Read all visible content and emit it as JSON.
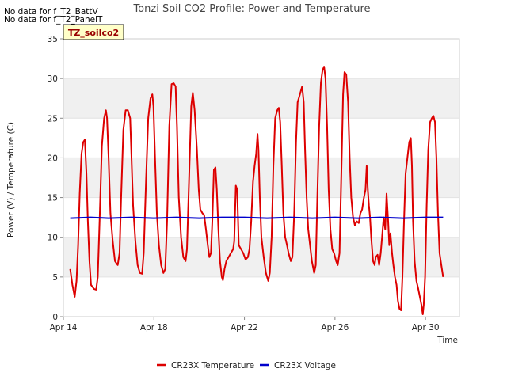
{
  "notes": [
    "No data for f_T2_BattV",
    "No data for f_T2_PanelT"
  ],
  "badge": "TZ_soilco2",
  "chart_data": {
    "type": "line",
    "title": "Tonzi Soil CO2 Profile: Power and Temperature",
    "xlabel": "Time",
    "ylabel": "Power (V) / Temperature (C)",
    "xlim": [
      0,
      17.5
    ],
    "x_tick_positions": [
      0,
      4,
      8,
      12,
      16
    ],
    "x_tick_labels": [
      "Apr 14",
      "Apr 18",
      "Apr 22",
      "Apr 26",
      "Apr 30"
    ],
    "ylim": [
      0,
      35
    ],
    "y_ticks": [
      0,
      5,
      10,
      15,
      20,
      25,
      30,
      35
    ],
    "grid": "horizontal bands",
    "legend": "bottom-center",
    "series": [
      {
        "name": "CR23X Temperature",
        "color": "#dd0000",
        "points": [
          [
            0.3,
            6.0
          ],
          [
            0.4,
            4.0
          ],
          [
            0.5,
            2.5
          ],
          [
            0.58,
            4.5
          ],
          [
            0.65,
            9.0
          ],
          [
            0.72,
            15.5
          ],
          [
            0.8,
            20.5
          ],
          [
            0.88,
            22.0
          ],
          [
            0.95,
            22.3
          ],
          [
            1.02,
            18.0
          ],
          [
            1.08,
            12.0
          ],
          [
            1.15,
            7.0
          ],
          [
            1.22,
            4.0
          ],
          [
            1.35,
            3.5
          ],
          [
            1.45,
            3.4
          ],
          [
            1.52,
            5.0
          ],
          [
            1.6,
            12.0
          ],
          [
            1.7,
            21.5
          ],
          [
            1.8,
            25.0
          ],
          [
            1.88,
            26.0
          ],
          [
            1.93,
            25.0
          ],
          [
            2.0,
            20.0
          ],
          [
            2.08,
            13.0
          ],
          [
            2.18,
            9.5
          ],
          [
            2.28,
            7.0
          ],
          [
            2.4,
            6.5
          ],
          [
            2.48,
            8.0
          ],
          [
            2.55,
            15.0
          ],
          [
            2.65,
            23.5
          ],
          [
            2.75,
            26.0
          ],
          [
            2.85,
            26.0
          ],
          [
            2.95,
            25.0
          ],
          [
            3.0,
            21.0
          ],
          [
            3.08,
            14.0
          ],
          [
            3.18,
            9.5
          ],
          [
            3.28,
            6.5
          ],
          [
            3.38,
            5.5
          ],
          [
            3.48,
            5.4
          ],
          [
            3.55,
            8.0
          ],
          [
            3.65,
            17.0
          ],
          [
            3.75,
            25.0
          ],
          [
            3.85,
            27.5
          ],
          [
            3.93,
            28.0
          ],
          [
            3.98,
            26.5
          ],
          [
            4.05,
            20.0
          ],
          [
            4.13,
            13.0
          ],
          [
            4.22,
            9.0
          ],
          [
            4.32,
            6.5
          ],
          [
            4.42,
            5.5
          ],
          [
            4.5,
            6.0
          ],
          [
            4.58,
            12.0
          ],
          [
            4.68,
            24.0
          ],
          [
            4.78,
            29.3
          ],
          [
            4.88,
            29.4
          ],
          [
            4.96,
            29.0
          ],
          [
            5.02,
            24.0
          ],
          [
            5.1,
            15.0
          ],
          [
            5.2,
            10.0
          ],
          [
            5.3,
            7.5
          ],
          [
            5.4,
            7.0
          ],
          [
            5.46,
            8.5
          ],
          [
            5.55,
            17.0
          ],
          [
            5.65,
            26.5
          ],
          [
            5.72,
            28.2
          ],
          [
            5.8,
            26.0
          ],
          [
            5.9,
            21.0
          ],
          [
            5.98,
            16.0
          ],
          [
            6.05,
            13.5
          ],
          [
            6.15,
            13.0
          ],
          [
            6.22,
            12.8
          ],
          [
            6.3,
            11.0
          ],
          [
            6.38,
            9.0
          ],
          [
            6.45,
            7.5
          ],
          [
            6.52,
            8.0
          ],
          [
            6.58,
            12.0
          ],
          [
            6.65,
            18.5
          ],
          [
            6.72,
            18.8
          ],
          [
            6.78,
            16.0
          ],
          [
            6.85,
            11.0
          ],
          [
            6.92,
            7.0
          ],
          [
            7.0,
            5.0
          ],
          [
            7.05,
            4.6
          ],
          [
            7.12,
            6.0
          ],
          [
            7.2,
            7.0
          ],
          [
            7.3,
            7.5
          ],
          [
            7.4,
            8.0
          ],
          [
            7.5,
            8.5
          ],
          [
            7.55,
            9.5
          ],
          [
            7.62,
            16.5
          ],
          [
            7.68,
            16.0
          ],
          [
            7.75,
            9.0
          ],
          [
            7.85,
            8.5
          ],
          [
            7.95,
            8.0
          ],
          [
            8.05,
            7.2
          ],
          [
            8.15,
            7.5
          ],
          [
            8.22,
            8.5
          ],
          [
            8.3,
            12.0
          ],
          [
            8.38,
            17.0
          ],
          [
            8.45,
            19.0
          ],
          [
            8.52,
            20.5
          ],
          [
            8.58,
            23.0
          ],
          [
            8.62,
            21.0
          ],
          [
            8.68,
            15.0
          ],
          [
            8.75,
            10.0
          ],
          [
            8.85,
            7.5
          ],
          [
            8.95,
            5.5
          ],
          [
            9.05,
            4.5
          ],
          [
            9.12,
            5.5
          ],
          [
            9.2,
            10.0
          ],
          [
            9.28,
            19.0
          ],
          [
            9.36,
            25.0
          ],
          [
            9.45,
            26.0
          ],
          [
            9.52,
            26.3
          ],
          [
            9.58,
            24.5
          ],
          [
            9.65,
            19.0
          ],
          [
            9.72,
            13.0
          ],
          [
            9.8,
            10.0
          ],
          [
            9.88,
            9.0
          ],
          [
            9.95,
            8.0
          ],
          [
            10.05,
            7.0
          ],
          [
            10.12,
            7.5
          ],
          [
            10.2,
            13.0
          ],
          [
            10.28,
            22.0
          ],
          [
            10.35,
            27.0
          ],
          [
            10.45,
            28.0
          ],
          [
            10.55,
            29.0
          ],
          [
            10.62,
            27.0
          ],
          [
            10.68,
            21.0
          ],
          [
            10.75,
            15.0
          ],
          [
            10.82,
            11.0
          ],
          [
            10.9,
            9.0
          ],
          [
            10.98,
            7.0
          ],
          [
            11.08,
            5.5
          ],
          [
            11.15,
            6.5
          ],
          [
            11.22,
            15.0
          ],
          [
            11.3,
            24.0
          ],
          [
            11.38,
            29.5
          ],
          [
            11.45,
            31.0
          ],
          [
            11.52,
            31.5
          ],
          [
            11.58,
            30.0
          ],
          [
            11.65,
            24.0
          ],
          [
            11.72,
            16.0
          ],
          [
            11.8,
            11.0
          ],
          [
            11.88,
            8.5
          ],
          [
            11.96,
            8.0
          ],
          [
            12.05,
            7.0
          ],
          [
            12.12,
            6.5
          ],
          [
            12.2,
            8.0
          ],
          [
            12.28,
            18.0
          ],
          [
            12.36,
            28.0
          ],
          [
            12.42,
            30.8
          ],
          [
            12.5,
            30.5
          ],
          [
            12.58,
            27.0
          ],
          [
            12.65,
            20.0
          ],
          [
            12.72,
            15.0
          ],
          [
            12.8,
            12.5
          ],
          [
            12.88,
            11.5
          ],
          [
            12.96,
            12.0
          ],
          [
            13.05,
            11.8
          ],
          [
            13.12,
            13.0
          ],
          [
            13.2,
            13.5
          ],
          [
            13.28,
            15.0
          ],
          [
            13.35,
            16.0
          ],
          [
            13.4,
            19.0
          ],
          [
            13.45,
            16.0
          ],
          [
            13.5,
            14.0
          ],
          [
            13.55,
            12.5
          ],
          [
            13.6,
            10.0
          ],
          [
            13.68,
            7.0
          ],
          [
            13.75,
            6.5
          ],
          [
            13.8,
            7.5
          ],
          [
            13.88,
            7.8
          ],
          [
            13.95,
            6.5
          ],
          [
            14.02,
            8.0
          ],
          [
            14.08,
            10.0
          ],
          [
            14.15,
            12.5
          ],
          [
            14.22,
            11.0
          ],
          [
            14.28,
            15.5
          ],
          [
            14.35,
            12.0
          ],
          [
            14.4,
            9.0
          ],
          [
            14.45,
            10.5
          ],
          [
            14.52,
            8.0
          ],
          [
            14.58,
            6.5
          ],
          [
            14.65,
            5.0
          ],
          [
            14.72,
            4.0
          ],
          [
            14.78,
            2.0
          ],
          [
            14.85,
            1.0
          ],
          [
            14.92,
            0.8
          ],
          [
            14.98,
            5.0
          ],
          [
            15.05,
            12.0
          ],
          [
            15.12,
            18.0
          ],
          [
            15.2,
            20.0
          ],
          [
            15.28,
            22.0
          ],
          [
            15.35,
            22.5
          ],
          [
            15.4,
            19.0
          ],
          [
            15.45,
            12.0
          ],
          [
            15.52,
            7.0
          ],
          [
            15.6,
            4.5
          ],
          [
            15.68,
            3.5
          ],
          [
            15.75,
            2.5
          ],
          [
            15.82,
            1.5
          ],
          [
            15.88,
            0.3
          ],
          [
            15.92,
            1.5
          ],
          [
            15.98,
            5.0
          ],
          [
            16.05,
            14.0
          ],
          [
            16.12,
            21.0
          ],
          [
            16.2,
            24.5
          ],
          [
            16.28,
            25.0
          ],
          [
            16.35,
            25.3
          ],
          [
            16.42,
            24.5
          ],
          [
            16.48,
            20.0
          ],
          [
            16.55,
            13.0
          ],
          [
            16.62,
            8.0
          ],
          [
            16.7,
            6.5
          ],
          [
            16.78,
            5.0
          ]
        ]
      },
      {
        "name": "CR23X Voltage",
        "color": "#0000cc",
        "points": [
          [
            0.3,
            12.4
          ],
          [
            1.2,
            12.5
          ],
          [
            2.0,
            12.4
          ],
          [
            3.0,
            12.5
          ],
          [
            4.0,
            12.4
          ],
          [
            5.0,
            12.5
          ],
          [
            6.0,
            12.4
          ],
          [
            7.0,
            12.5
          ],
          [
            8.0,
            12.5
          ],
          [
            9.0,
            12.4
          ],
          [
            10.0,
            12.5
          ],
          [
            11.0,
            12.4
          ],
          [
            12.0,
            12.5
          ],
          [
            13.0,
            12.4
          ],
          [
            14.0,
            12.5
          ],
          [
            15.0,
            12.4
          ],
          [
            16.0,
            12.5
          ],
          [
            16.78,
            12.5
          ]
        ]
      }
    ]
  }
}
